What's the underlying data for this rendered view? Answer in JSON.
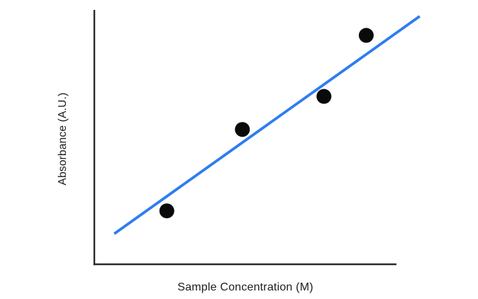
{
  "figure": {
    "xlabel": "Sample Concentration (M)",
    "ylabel": "Absorbance (A.U.)"
  },
  "colors": {
    "background": "#ffffff",
    "axis": "#2b2b2b",
    "data_point": "#0a0a0a",
    "trendline": "#2d7df0",
    "label_text": "#1c1c1c"
  },
  "chart_data": {
    "type": "scatter",
    "title": "",
    "xlabel": "Sample Concentration (M)",
    "ylabel": "Absorbance (A.U.)",
    "x_tick_labels": [],
    "y_tick_labels": [],
    "grid": false,
    "legend": false,
    "xlim": [
      0,
      1
    ],
    "ylim": [
      0,
      1
    ],
    "axes_note": "No tick marks or numeric labels; point values estimated as fractions of the plot area (arbitrary units).",
    "points": [
      {
        "x": 0.24,
        "y": 0.21
      },
      {
        "x": 0.49,
        "y": 0.53
      },
      {
        "x": 0.76,
        "y": 0.66
      },
      {
        "x": 0.9,
        "y": 0.9
      }
    ],
    "trendline": {
      "type": "linear-best-fit",
      "x1": 0.066,
      "y1": 0.12,
      "x2": 1.077,
      "y2": 0.975
    }
  }
}
